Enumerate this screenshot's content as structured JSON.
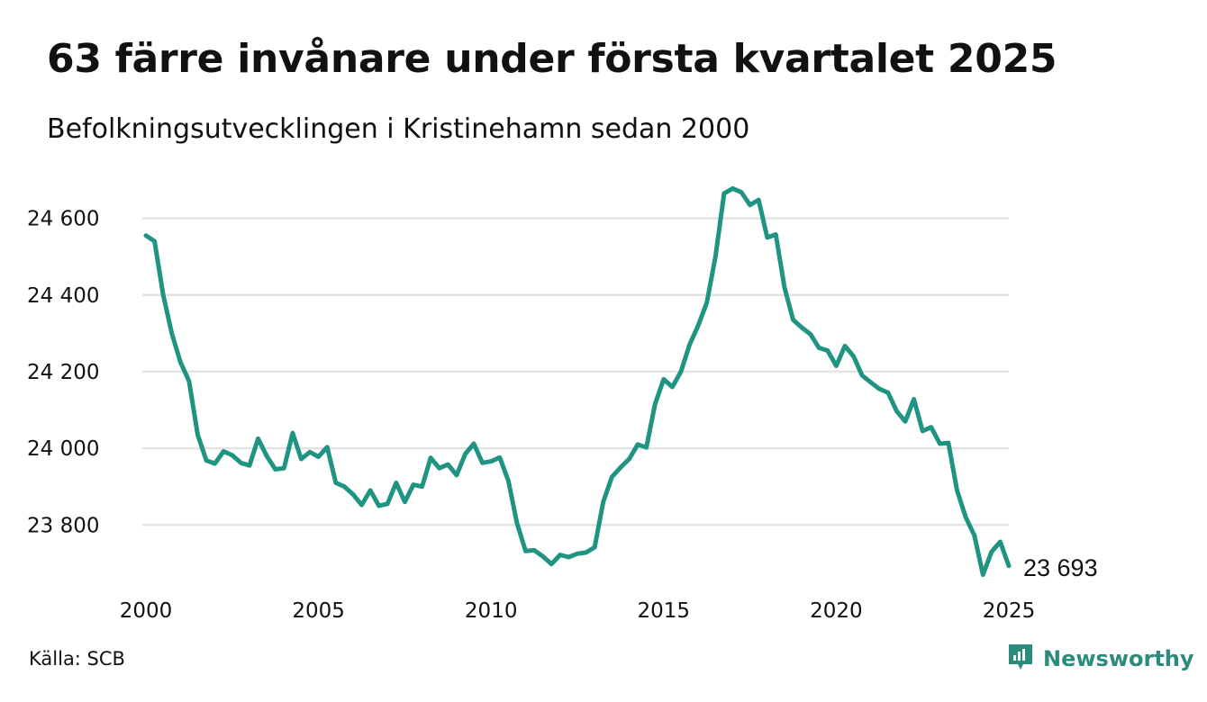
{
  "header": {
    "title": "63 färre invånare under första kvartalet 2025",
    "subtitle": "Befolkningsutvecklingen i Kristinehamn sedan 2000"
  },
  "footer": {
    "source": "Källa: SCB",
    "brand": "Newsworthy",
    "brand_icon": "newsworthy-logo-icon"
  },
  "colors": {
    "line": "#1f9482",
    "grid": "#e3e3e3",
    "brand": "#2b8c7e"
  },
  "chart_data": {
    "type": "line",
    "title": "63 färre invånare under första kvartalet 2025",
    "subtitle": "Befolkningsutvecklingen i Kristinehamn sedan 2000",
    "xlabel": "",
    "ylabel": "",
    "x_start": 2000,
    "x_step": 0.25,
    "xlim": [
      2000,
      2025
    ],
    "ylim": [
      23655,
      24700
    ],
    "x_ticks": [
      2000,
      2005,
      2010,
      2015,
      2020,
      2025
    ],
    "x_tick_labels": [
      "2000",
      "2005",
      "2010",
      "2015",
      "2020",
      "2025"
    ],
    "y_ticks": [
      23800,
      24000,
      24200,
      24400,
      24600
    ],
    "y_tick_labels": [
      "23 800",
      "24 000",
      "24 200",
      "24 400",
      "24 600"
    ],
    "grid": true,
    "end_label": "23 693",
    "series": [
      {
        "values": [
          24555,
          24540,
          24400,
          24300,
          24225,
          24175,
          24035,
          23968,
          23960,
          23992,
          23982,
          23962,
          23955,
          24025,
          23980,
          23945,
          23948,
          24040,
          23972,
          23990,
          23978,
          24003,
          23910,
          23900,
          23880,
          23852,
          23890,
          23850,
          23855,
          23910,
          23860,
          23905,
          23900,
          23975,
          23948,
          23958,
          23930,
          23985,
          24012,
          23962,
          23966,
          23976,
          23915,
          23805,
          23732,
          23734,
          23718,
          23698,
          23722,
          23716,
          23725,
          23728,
          23742,
          23860,
          23925,
          23950,
          23972,
          24010,
          24002,
          24115,
          24180,
          24160,
          24200,
          24270,
          24320,
          24380,
          24500,
          24665,
          24678,
          24668,
          24635,
          24648,
          24550,
          24558,
          24420,
          24335,
          24315,
          24298,
          24262,
          24255,
          24215,
          24267,
          24240,
          24190,
          24172,
          24155,
          24145,
          24097,
          24070,
          24128,
          24045,
          24055,
          24012,
          24014,
          23890,
          23820,
          23773,
          23670,
          23730,
          23756,
          23693
        ]
      }
    ]
  }
}
